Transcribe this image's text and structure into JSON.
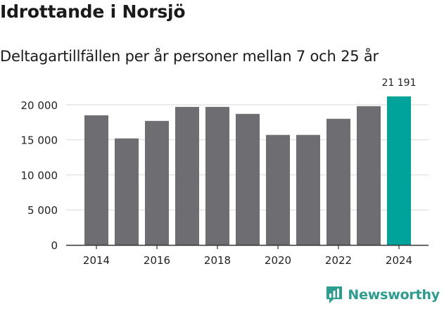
{
  "header": {
    "title": "Idrottande i Norsjö",
    "subtitle": "Deltagartillfällen per år personer mellan 7 och 25 år"
  },
  "brand": {
    "name": "Newsworthy"
  },
  "colors": {
    "bar": "#6e6d72",
    "highlight": "#00a399",
    "grid": "#d9d9d9",
    "axis": "#333333",
    "brand": "#2a9d8f"
  },
  "chart_data": {
    "type": "bar",
    "title": "Idrottande i Norsjö",
    "subtitle": "Deltagartillfällen per år personer mellan 7 och 25 år",
    "xlabel": "",
    "ylabel": "",
    "categories": [
      "2014",
      "2015",
      "2016",
      "2017",
      "2018",
      "2019",
      "2020",
      "2021",
      "2022",
      "2023",
      "2024"
    ],
    "values": [
      18500,
      15200,
      17700,
      19700,
      19700,
      18700,
      15700,
      15700,
      18000,
      19800,
      21191
    ],
    "highlight_index": 10,
    "highlight_label": "21 191",
    "ylim": [
      0,
      23000
    ],
    "yticks": [
      0,
      5000,
      10000,
      15000,
      20000
    ],
    "ytick_labels": [
      "0",
      "5 000",
      "10 000",
      "15 000",
      "20 000"
    ],
    "xtick_labels": [
      "2014",
      "2016",
      "2018",
      "2020",
      "2022",
      "2024"
    ],
    "grid": true,
    "legend": "none"
  }
}
